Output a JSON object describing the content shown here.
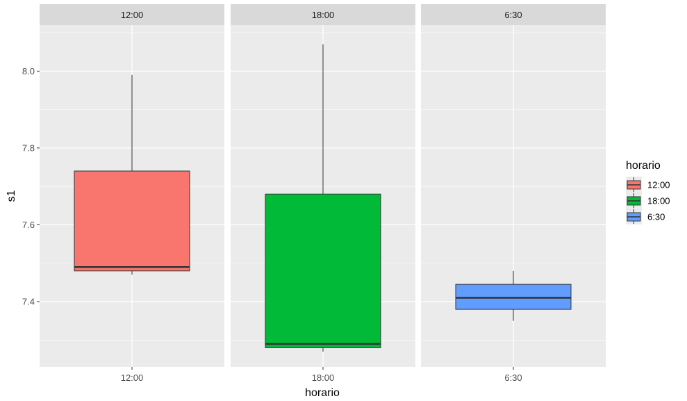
{
  "chart_data": {
    "type": "boxplot",
    "xlabel": "horario",
    "ylabel": "s1",
    "ylim": [
      7.23,
      8.12
    ],
    "yticks": [
      "7.4",
      "7.6",
      "7.8",
      "8.0"
    ],
    "facets": [
      "12:00",
      "18:00",
      "6:30"
    ],
    "legend": {
      "title": "horario",
      "position": "right",
      "entries": [
        {
          "label": "12:00",
          "color": "#F8766D"
        },
        {
          "label": "18:00",
          "color": "#00BA38"
        },
        {
          "label": "6:30",
          "color": "#619CFF"
        }
      ]
    },
    "series": [
      {
        "facet": "12:00",
        "category": "12:00",
        "color": "#F8766D",
        "min": 7.47,
        "q1": 7.48,
        "median": 7.49,
        "q3": 7.74,
        "max": 7.99
      },
      {
        "facet": "18:00",
        "category": "18:00",
        "color": "#00BA38",
        "min": 7.27,
        "q1": 7.28,
        "median": 7.29,
        "q3": 7.68,
        "max": 8.07
      },
      {
        "facet": "6:30",
        "category": "6:30",
        "color": "#619CFF",
        "min": 7.35,
        "q1": 7.38,
        "median": 7.41,
        "q3": 7.445,
        "max": 7.48
      }
    ],
    "grid": true
  }
}
